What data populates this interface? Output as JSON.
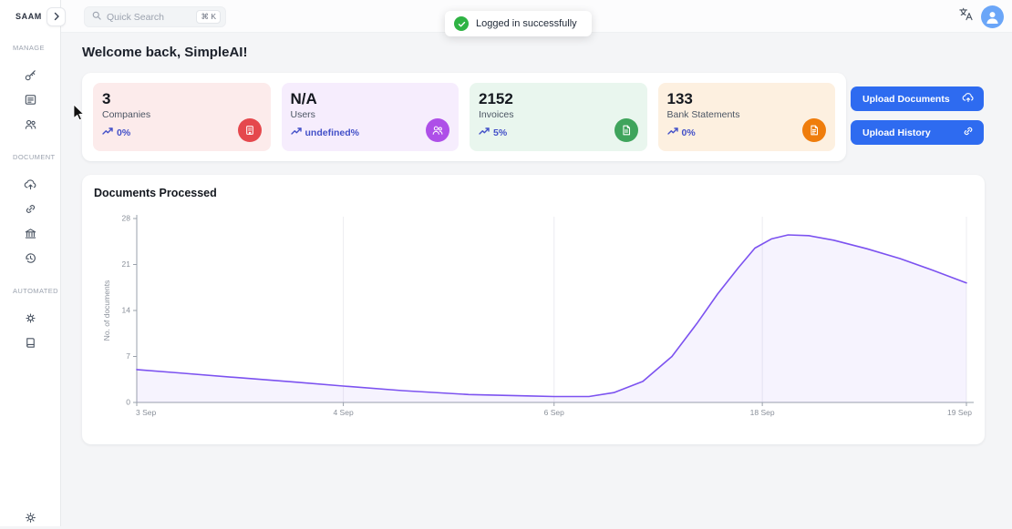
{
  "app": {
    "logo": "SAAM"
  },
  "theme": {
    "accent": "#2e6bf0",
    "trend_color": "#4350c8"
  },
  "topbar": {
    "search": {
      "placeholder": "Quick Search",
      "shortcut": "⌘ K",
      "icon": "search-icon"
    },
    "toast": {
      "message": "Logged in successfully",
      "icon": "check-circle-icon",
      "status_color": "#2fb344"
    },
    "right_icons": [
      "translate-icon",
      "avatar"
    ]
  },
  "sidebar": {
    "sections": [
      {
        "label": "MANAGE",
        "icons": [
          "key-icon",
          "invoice-icon",
          "users-icon"
        ]
      },
      {
        "label": "DOCUMENT",
        "icons": [
          "cloud-upload-icon",
          "link-icon",
          "bank-icon",
          "history-clock-icon"
        ]
      },
      {
        "label": "AUTOMATED",
        "icons": [
          "gear-doc-icon",
          "book-icon"
        ]
      }
    ],
    "bottom_icon": "gear-icon"
  },
  "main": {
    "welcome": "Welcome back, SimpleAI!",
    "stats": [
      {
        "value": "3",
        "label": "Companies",
        "trend": "0%",
        "bg": "#fcebeb",
        "icon_bg": "#e5484d",
        "icon": "building-icon"
      },
      {
        "value": "N/A",
        "label": "Users",
        "trend": "undefined%",
        "bg": "#f6edfd",
        "icon_bg": "#ae4fe8",
        "icon": "users-icon"
      },
      {
        "value": "2152",
        "label": "Invoices",
        "trend": "5%",
        "bg": "#e9f6ee",
        "icon_bg": "#3fa45c",
        "icon": "invoice-icon"
      },
      {
        "value": "133",
        "label": "Bank Statements",
        "trend": "0%",
        "bg": "#fdf0e0",
        "icon_bg": "#ef7d0c",
        "icon": "statement-icon"
      }
    ],
    "actions": {
      "upload_documents": "Upload Documents",
      "upload_history": "Upload History"
    }
  },
  "chart_data": {
    "type": "area",
    "title": "Documents Processed",
    "xlabel": "",
    "ylabel": "No. of documents",
    "ylim": [
      0,
      28
    ],
    "yticks": [
      0,
      7,
      14,
      21,
      28
    ],
    "xticks": [
      {
        "label": "3 Sep",
        "f": 0
      },
      {
        "label": "4 Sep",
        "f": 0.249
      },
      {
        "label": "6 Sep",
        "f": 0.503
      },
      {
        "label": "18 Sep",
        "f": 0.754
      },
      {
        "label": "19 Sep",
        "f": 1
      }
    ],
    "values_at_ticks": [
      5,
      2.5,
      1,
      24.8,
      18.2
    ],
    "grid_tick_indexes": [
      1,
      2,
      3,
      4
    ],
    "curve": [
      [
        0,
        5
      ],
      [
        0.05,
        4.5
      ],
      [
        0.12,
        3.8
      ],
      [
        0.19,
        3.1
      ],
      [
        0.249,
        2.5
      ],
      [
        0.32,
        1.8
      ],
      [
        0.4,
        1.2
      ],
      [
        0.47,
        1.0
      ],
      [
        0.503,
        0.9
      ],
      [
        0.545,
        0.9
      ],
      [
        0.575,
        1.5
      ],
      [
        0.61,
        3.2
      ],
      [
        0.645,
        7
      ],
      [
        0.675,
        12
      ],
      [
        0.7,
        16.5
      ],
      [
        0.725,
        20.5
      ],
      [
        0.745,
        23.5
      ],
      [
        0.765,
        24.9
      ],
      [
        0.785,
        25.5
      ],
      [
        0.81,
        25.4
      ],
      [
        0.84,
        24.7
      ],
      [
        0.88,
        23.4
      ],
      [
        0.92,
        21.9
      ],
      [
        0.96,
        20.1
      ],
      [
        1,
        18.2
      ]
    ],
    "line_color": "#7c52f0",
    "fill_color": "rgba(124,82,240,0.07)",
    "grid": "vertical",
    "legend_position": "none"
  }
}
